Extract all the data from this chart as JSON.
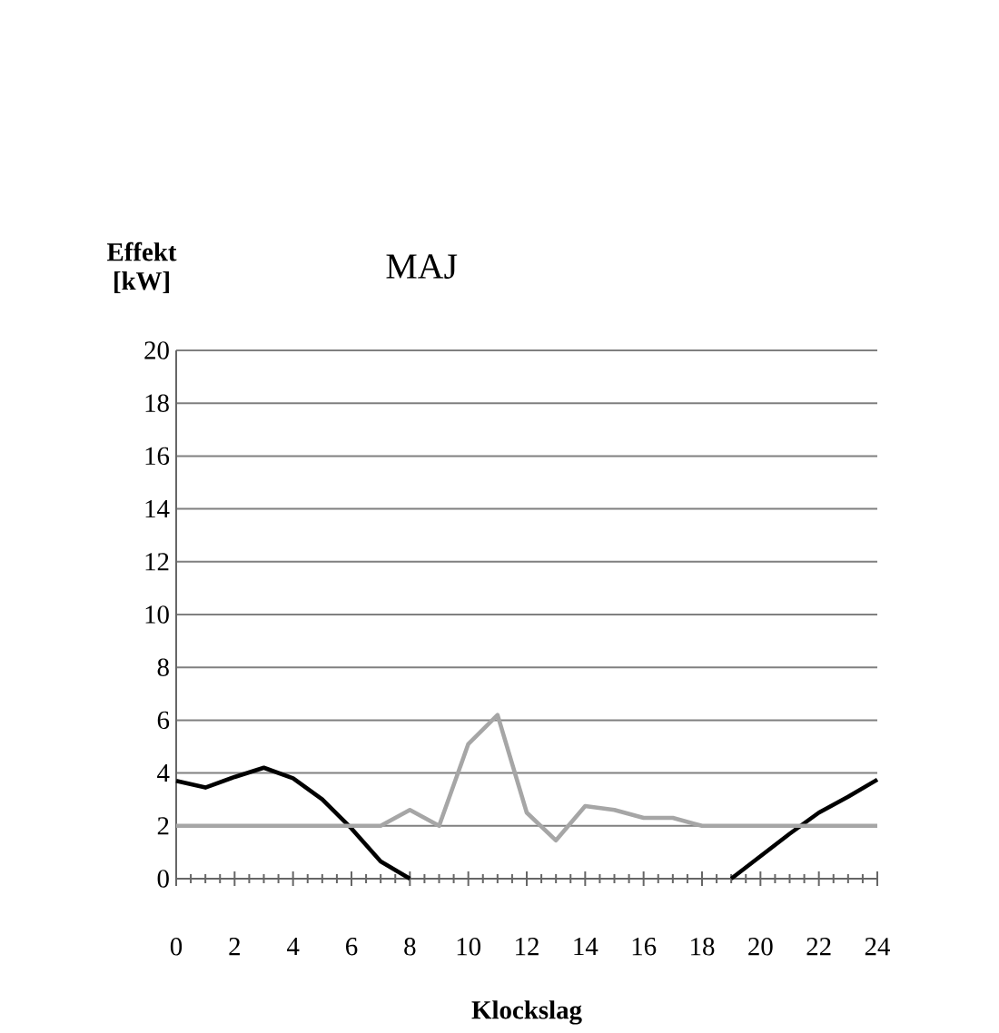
{
  "chart_data": {
    "type": "line",
    "title": "MAJ",
    "xlabel": "Klockslag",
    "ylabel": "Effekt [kW]",
    "x": [
      0,
      1,
      2,
      3,
      4,
      5,
      6,
      7,
      8,
      9,
      10,
      11,
      12,
      13,
      14,
      15,
      16,
      17,
      18,
      19,
      20,
      21,
      22,
      23,
      24
    ],
    "series": [
      {
        "color": "#000000",
        "values": [
          3.7,
          3.45,
          3.85,
          4.2,
          3.8,
          3.0,
          1.9,
          0.65,
          0,
          null,
          null,
          null,
          null,
          null,
          null,
          null,
          null,
          null,
          null,
          0,
          0.85,
          1.7,
          2.5,
          3.1,
          3.75
        ]
      },
      {
        "color": "#a6a6a6",
        "values": [
          2,
          2,
          2,
          2,
          2,
          2,
          2,
          2,
          2.6,
          2,
          5.1,
          6.2,
          2.5,
          1.45,
          2.75,
          2.6,
          2.3,
          2.3,
          2,
          2,
          2,
          2,
          2,
          2,
          2
        ]
      }
    ],
    "xlim": [
      0,
      24
    ],
    "xticks": [
      0,
      2,
      4,
      6,
      8,
      10,
      12,
      14,
      16,
      18,
      20,
      22,
      24
    ],
    "ylim": [
      0,
      20
    ],
    "yticks": [
      0,
      2,
      4,
      6,
      8,
      10,
      12,
      14,
      16,
      18,
      20
    ],
    "grid": "y",
    "legend": false,
    "marker": "none",
    "line_style": "solid"
  }
}
